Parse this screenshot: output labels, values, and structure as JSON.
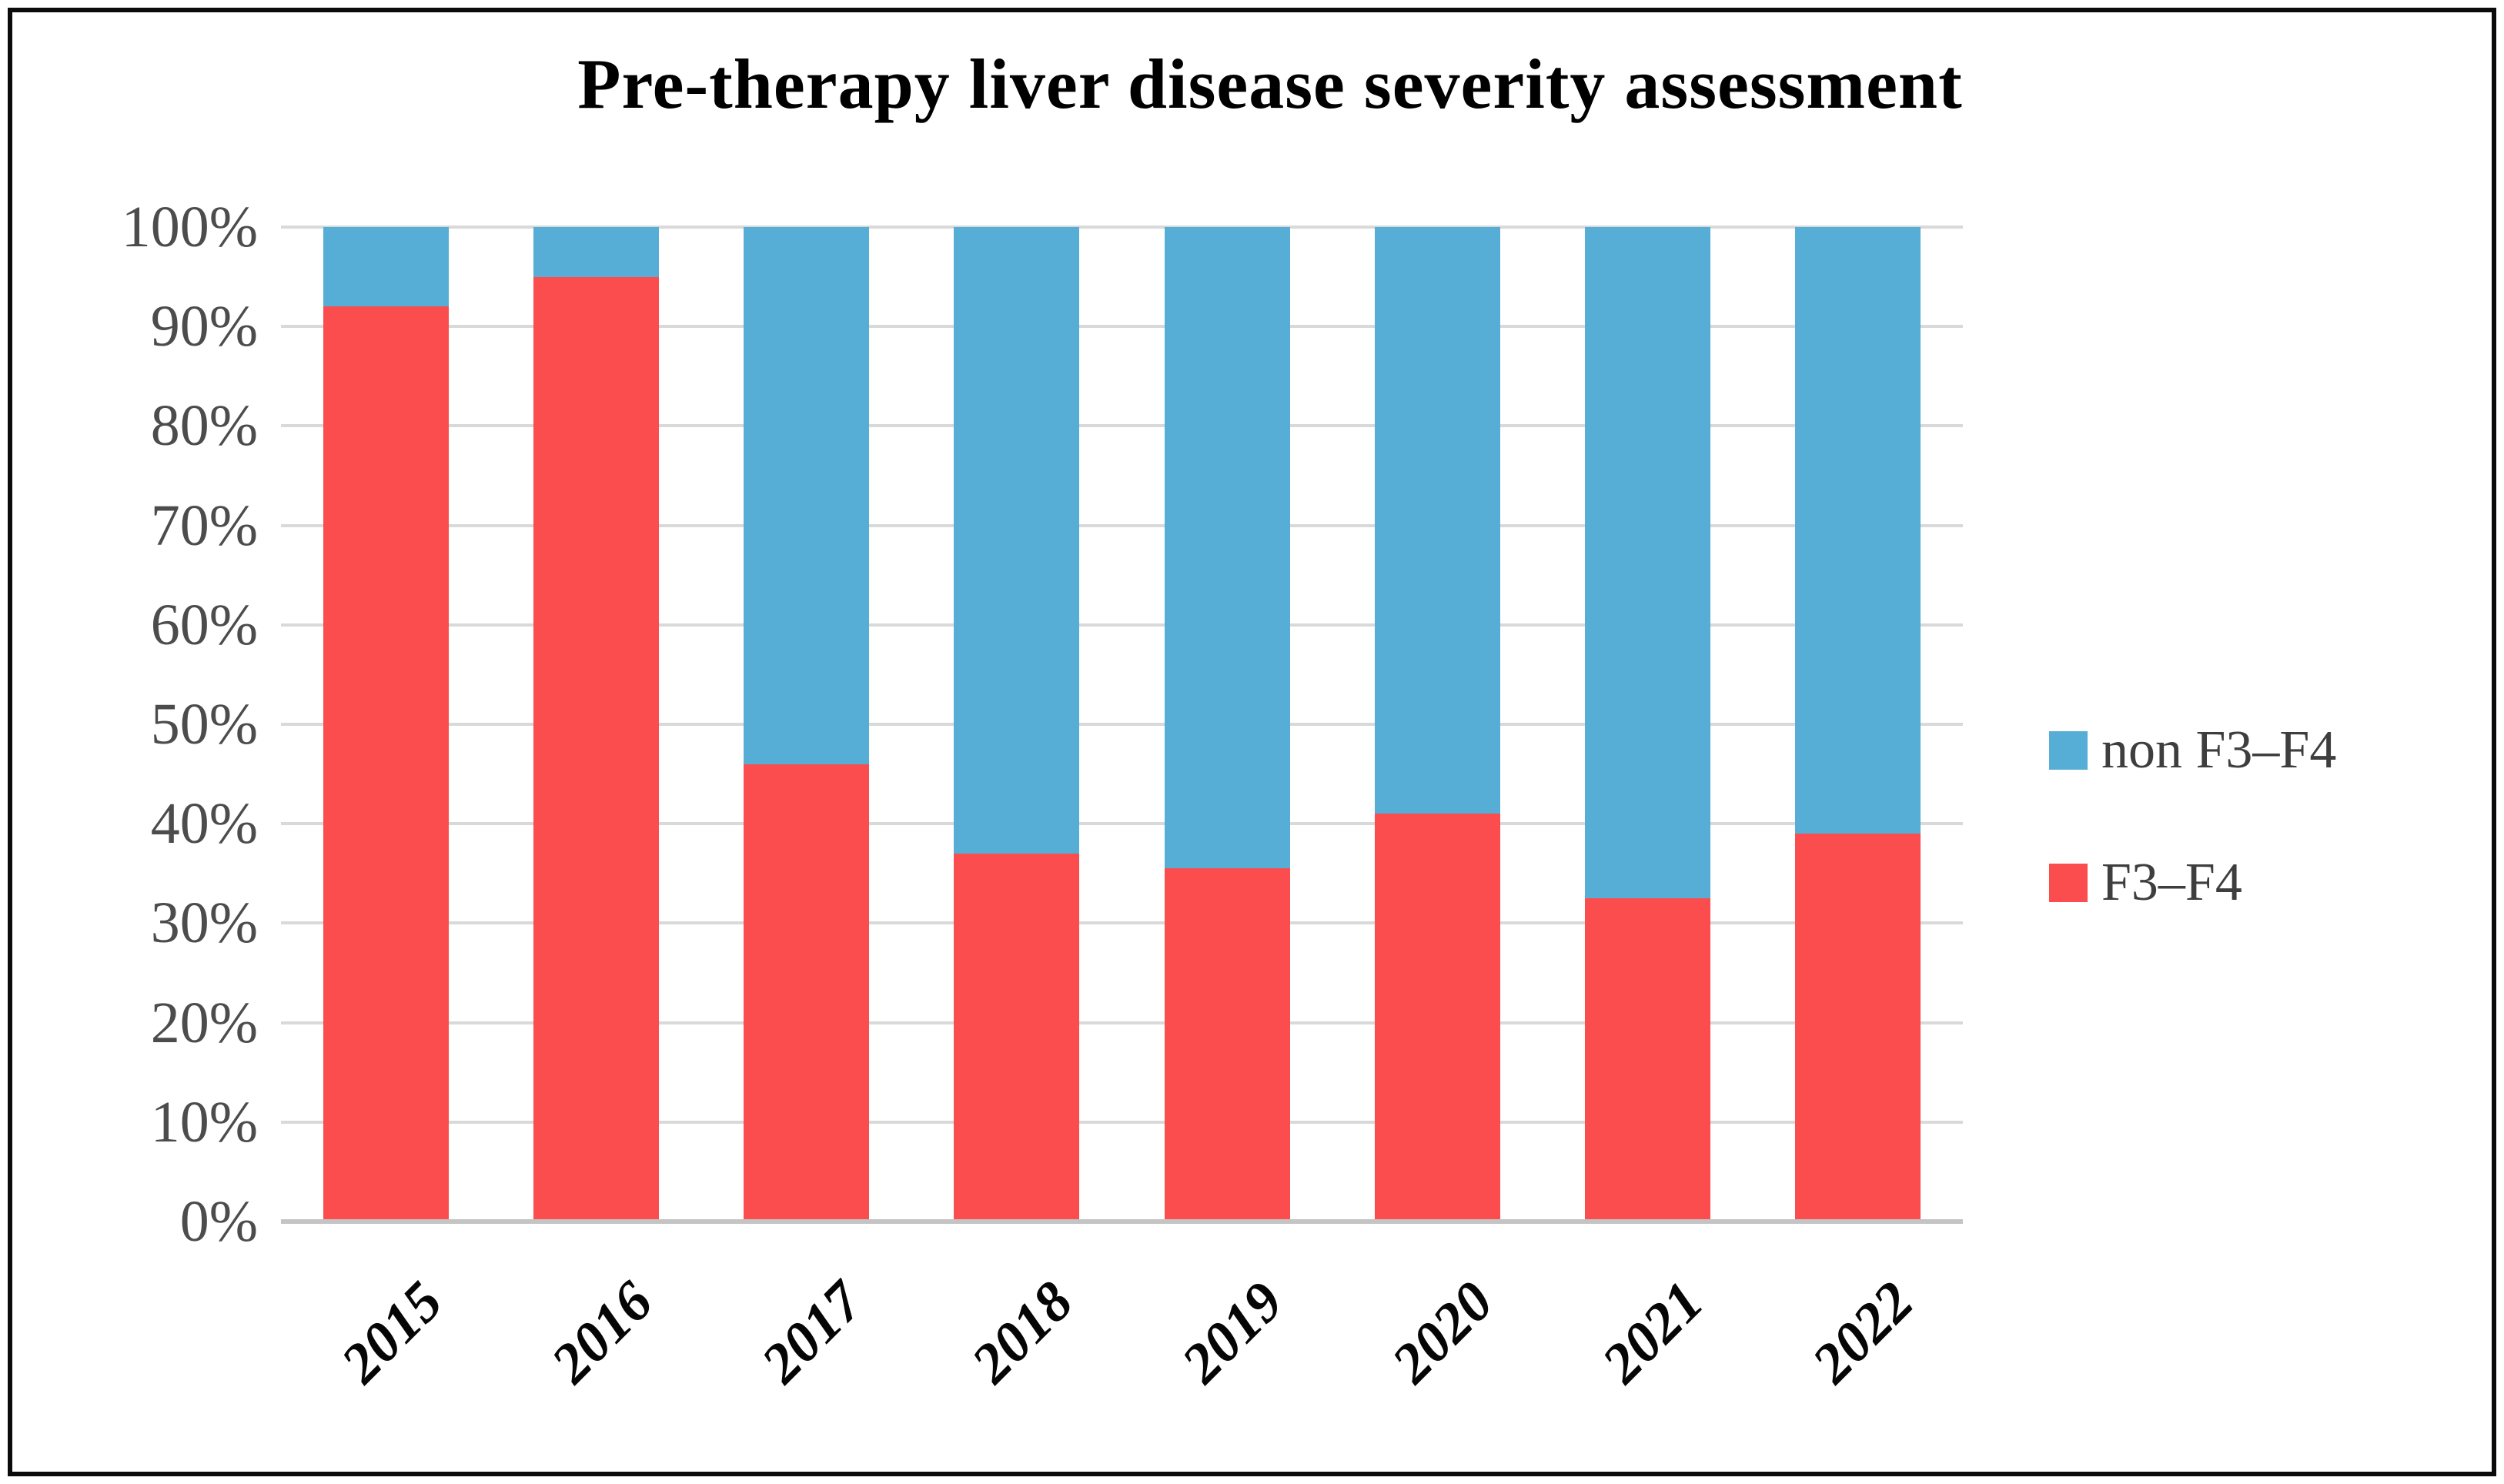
{
  "title": "Pre-therapy liver disease severity assessment",
  "chart_data": {
    "type": "bar",
    "stacked": true,
    "title": "Pre-therapy liver disease severity assessment",
    "categories": [
      "2015",
      "2016",
      "2017",
      "2018",
      "2019",
      "2020",
      "2021",
      "2022"
    ],
    "series": [
      {
        "name": "F3–F4",
        "color": "#fb4d4d",
        "values": [
          92,
          95,
          46,
          37,
          35.5,
          41,
          32.5,
          39
        ]
      },
      {
        "name": "non F3–F4",
        "color": "#56aed6",
        "values": [
          8,
          5,
          54,
          63,
          64.5,
          59,
          67.5,
          61
        ]
      }
    ],
    "xlabel": "",
    "ylabel": "",
    "ylim": [
      0,
      100
    ],
    "y_ticks": [
      "0%",
      "10%",
      "20%",
      "30%",
      "40%",
      "50%",
      "60%",
      "70%",
      "80%",
      "90%",
      "100%"
    ],
    "grid": true,
    "legend_position": "right-middle",
    "x_tick_rotation_deg": -45
  },
  "legend": {
    "items": [
      {
        "label": "non F3–F4",
        "color": "#56aed6"
      },
      {
        "label": "F3–F4",
        "color": "#fb4d4d"
      }
    ]
  },
  "colors": {
    "background": "#ffffff",
    "border": "#0b0b0b",
    "gridline": "#d9d9d9",
    "axisline": "#c4c4c4",
    "y_tick_label": "#4c4c4c",
    "x_tick_label": "#050505",
    "legend_label": "#3e3e3e",
    "title": "#000000"
  }
}
